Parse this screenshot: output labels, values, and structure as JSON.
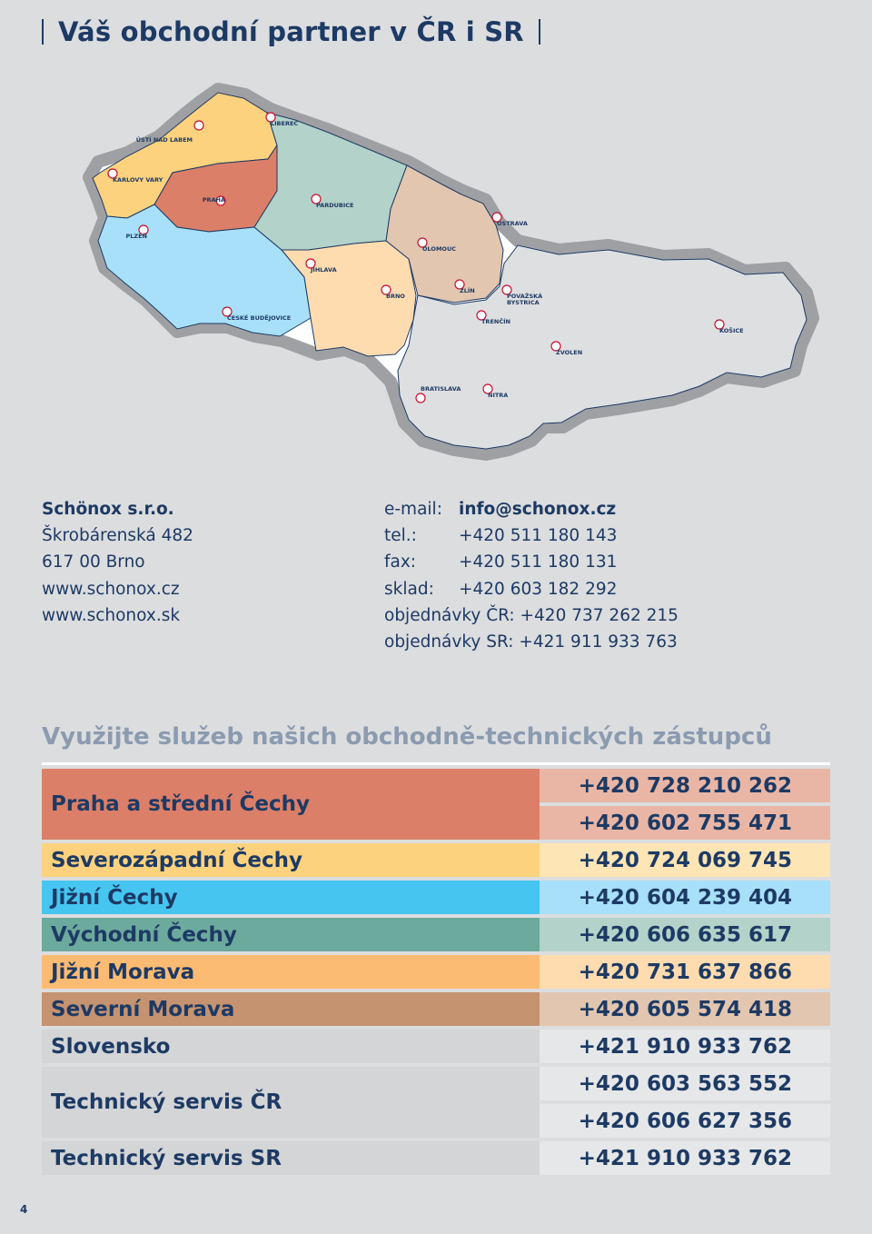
{
  "title": "Váš obchodní partner v ČR i SR",
  "map": {
    "cities": [
      {
        "name": "ÚSTÍ NAD LABEM"
      },
      {
        "name": "LIBEREC"
      },
      {
        "name": "KARLOVY VARY"
      },
      {
        "name": "PRAHA"
      },
      {
        "name": "PARDUBICE"
      },
      {
        "name": "OSTRAVA"
      },
      {
        "name": "PLZEŇ"
      },
      {
        "name": "OLOMOUC"
      },
      {
        "name": "JIHLAVA"
      },
      {
        "name": "BRNO"
      },
      {
        "name": "ZLÍN"
      },
      {
        "name": "POVAŽSKÁ"
      },
      {
        "name": "BYSTRICA"
      },
      {
        "name": "ČESKÉ BUDĚJOVICE"
      },
      {
        "name": "TRENČÍN"
      },
      {
        "name": "KOŠICE"
      },
      {
        "name": "ZVOLEN"
      },
      {
        "name": "BRATISLAVA"
      },
      {
        "name": "NITRA"
      }
    ]
  },
  "address": {
    "company": "Schönox s.r.o.",
    "street": "Škrobárenská 482",
    "city": "617 00  Brno",
    "web_cz": "www.schonox.cz",
    "web_sk": "www.schonox.sk"
  },
  "contact": {
    "email_label": "e-mail:",
    "email": "info@schonox.cz",
    "tel_label": "tel.:",
    "tel": "+420 511 180 143",
    "fax_label": "fax:",
    "fax": "+420 511 180 131",
    "sklad_label": "sklad:",
    "sklad": "+420 603 182 292",
    "orders_cr": "objednávky ČR: +420 737 262 215",
    "orders_sr": "objednávky SR: +421 911 933 763"
  },
  "reps_title": "Využijte služeb našich obchodně-technických zástupců",
  "reps": [
    {
      "region": "Praha a střední Čechy",
      "phones": [
        "+420 728 210 262",
        "+420 602 755 471"
      ],
      "color": "#dc7f68",
      "light": "#e9b6a5"
    },
    {
      "region": "Severozápadní Čechy",
      "phones": [
        "+420 724 069 745"
      ],
      "color": "#fdd27e",
      "light": "#fde5b5"
    },
    {
      "region": "Jižní Čechy",
      "phones": [
        "+420 604 239 404"
      ],
      "color": "#46c5f1",
      "light": "#a7e0f8"
    },
    {
      "region": "Východní Čechy",
      "phones": [
        "+420 606 635 617"
      ],
      "color": "#6caa9d",
      "light": "#b3d2c9"
    },
    {
      "region": "Jižní Morava",
      "phones": [
        "+420 731 637 866"
      ],
      "color": "#fcbb72",
      "light": "#fedcb0"
    },
    {
      "region": "Severní Morava",
      "phones": [
        "+420 605 574 418"
      ],
      "color": "#c69370",
      "light": "#e2c6b0"
    },
    {
      "region": "Slovensko",
      "phones": [
        "+421 910 933 762"
      ],
      "color": "#d4d5d7",
      "light": "#e6e7e8"
    },
    {
      "region": "Technický servis ČR",
      "phones": [
        "+420 603 563 552",
        "+420 606 627 356"
      ],
      "color": "#d4d5d7",
      "light": "#e6e7e8"
    },
    {
      "region": "Technický servis SR",
      "phones": [
        "+421 910 933 762"
      ],
      "color": "#d4d5d7",
      "light": "#e6e7e8"
    }
  ],
  "page_number": "4"
}
